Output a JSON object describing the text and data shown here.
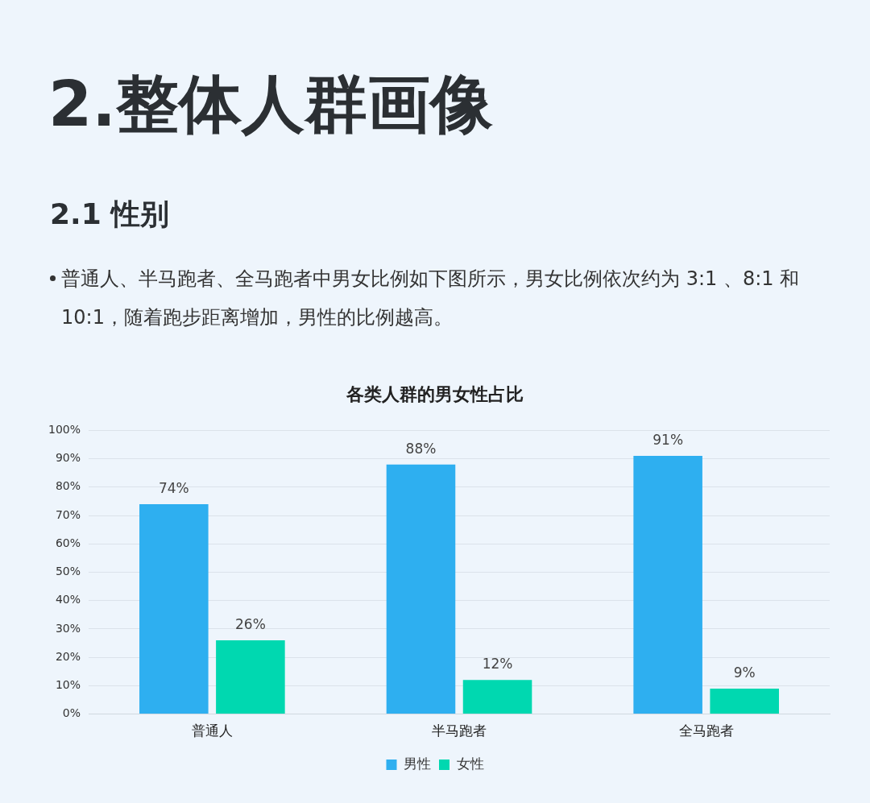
{
  "chart_data": {
    "type": "bar",
    "title": "各类人群的男女性占比",
    "annotations": [
      "2.整体人群画像",
      "2.1 性别",
      "普通人、半马跑者、全马跑者中男女比例如下图所示，男女比例依次约为 3:1 、8:1 和10:1，随着跑步距离增加，男性的比例越高。"
    ],
    "categories": [
      "普通人",
      "半马跑者",
      "全马跑者"
    ],
    "series": [
      {
        "name": "男性",
        "color": "#2eaff0",
        "values": [
          74,
          88,
          91
        ],
        "value_labels": [
          "74%",
          "88%",
          "91%"
        ]
      },
      {
        "name": "女性",
        "color": "#00d8b0",
        "values": [
          26,
          12,
          9
        ],
        "value_labels": [
          "26%",
          "12%",
          "9%"
        ]
      }
    ],
    "ylim": [
      0,
      100
    ],
    "yticks": [
      {
        "value": 0,
        "label": "0%"
      },
      {
        "value": 10,
        "label": "10%"
      },
      {
        "value": 20,
        "label": "20%"
      },
      {
        "value": 30,
        "label": "30%"
      },
      {
        "value": 40,
        "label": "40%"
      },
      {
        "value": 50,
        "label": "50%"
      },
      {
        "value": 60,
        "label": "60%"
      },
      {
        "value": 70,
        "label": "70%"
      },
      {
        "value": 80,
        "label": "80%"
      },
      {
        "value": 90,
        "label": "90%"
      },
      {
        "value": 100,
        "label": "100%"
      }
    ],
    "grid": "y",
    "legend": "bottom"
  }
}
